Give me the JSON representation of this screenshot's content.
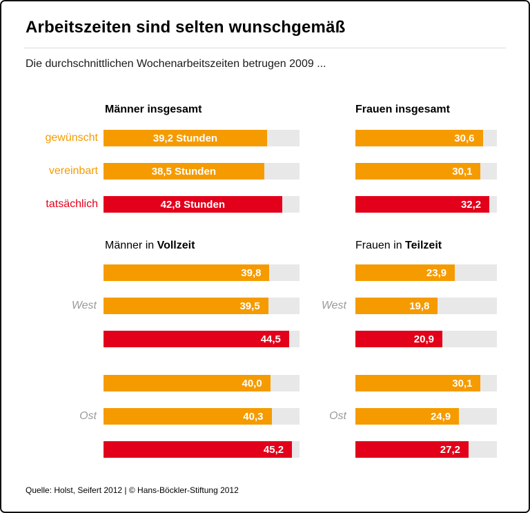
{
  "header": {
    "title": "Arbeitszeiten sind selten wunschgemäß",
    "subtitle": "Die durchschnittlichen Wochenarbeitszeiten betrugen 2009 ..."
  },
  "legend": {
    "rows": [
      "gewünscht",
      "vereinbart",
      "tatsächlich"
    ]
  },
  "footer": {
    "source": "Quelle: Holst, Seifert 2012 | © Hans-Böckler-Stiftung 2012"
  },
  "colors": {
    "orange": "#f59b00",
    "red": "#e2001a",
    "track": "#e8e8e8"
  },
  "chart_data": [
    {
      "type": "bar",
      "title": "Männer insgesamt",
      "categories": [
        "gewünscht",
        "vereinbart",
        "tatsächlich"
      ],
      "values": [
        39.2,
        38.5,
        42.8
      ],
      "labels": [
        "39,2 Stunden",
        "38,5 Stunden",
        "42,8 Stunden"
      ],
      "unit": "Stunden",
      "xlim": [
        0,
        47
      ],
      "label_align": "center"
    },
    {
      "type": "bar",
      "title": "Frauen insgesamt",
      "categories": [
        "gewünscht",
        "vereinbart",
        "tatsächlich"
      ],
      "values": [
        30.6,
        30.1,
        32.2
      ],
      "labels": [
        "30,6",
        "30,1",
        "32,2"
      ],
      "unit": "Stunden",
      "xlim": [
        0,
        34
      ],
      "label_align": "right"
    },
    {
      "type": "bar",
      "title_prefix": "Männer in ",
      "title_bold": "Vollzeit",
      "categories": [
        "gewünscht",
        "vereinbart",
        "tatsächlich"
      ],
      "groups": [
        {
          "label": "West",
          "values": [
            39.8,
            39.5,
            44.5
          ],
          "labels": [
            "39,8",
            "39,5",
            "44,5"
          ]
        },
        {
          "label": "Ost",
          "values": [
            40.0,
            40.3,
            45.2
          ],
          "labels": [
            "40,0",
            "40,3",
            "45,2"
          ]
        }
      ],
      "unit": "Stunden",
      "xlim": [
        0,
        47
      ],
      "label_align": "right"
    },
    {
      "type": "bar",
      "title_prefix": "Frauen in ",
      "title_bold": "Teilzeit",
      "categories": [
        "gewünscht",
        "vereinbart",
        "tatsächlich"
      ],
      "groups": [
        {
          "label": "West",
          "values": [
            23.9,
            19.8,
            20.9
          ],
          "labels": [
            "23,9",
            "19,8",
            "20,9"
          ]
        },
        {
          "label": "Ost",
          "values": [
            30.1,
            24.9,
            27.2
          ],
          "labels": [
            "30,1",
            "24,9",
            "27,2"
          ]
        }
      ],
      "unit": "Stunden",
      "xlim": [
        0,
        34
      ],
      "label_align": "right"
    }
  ]
}
